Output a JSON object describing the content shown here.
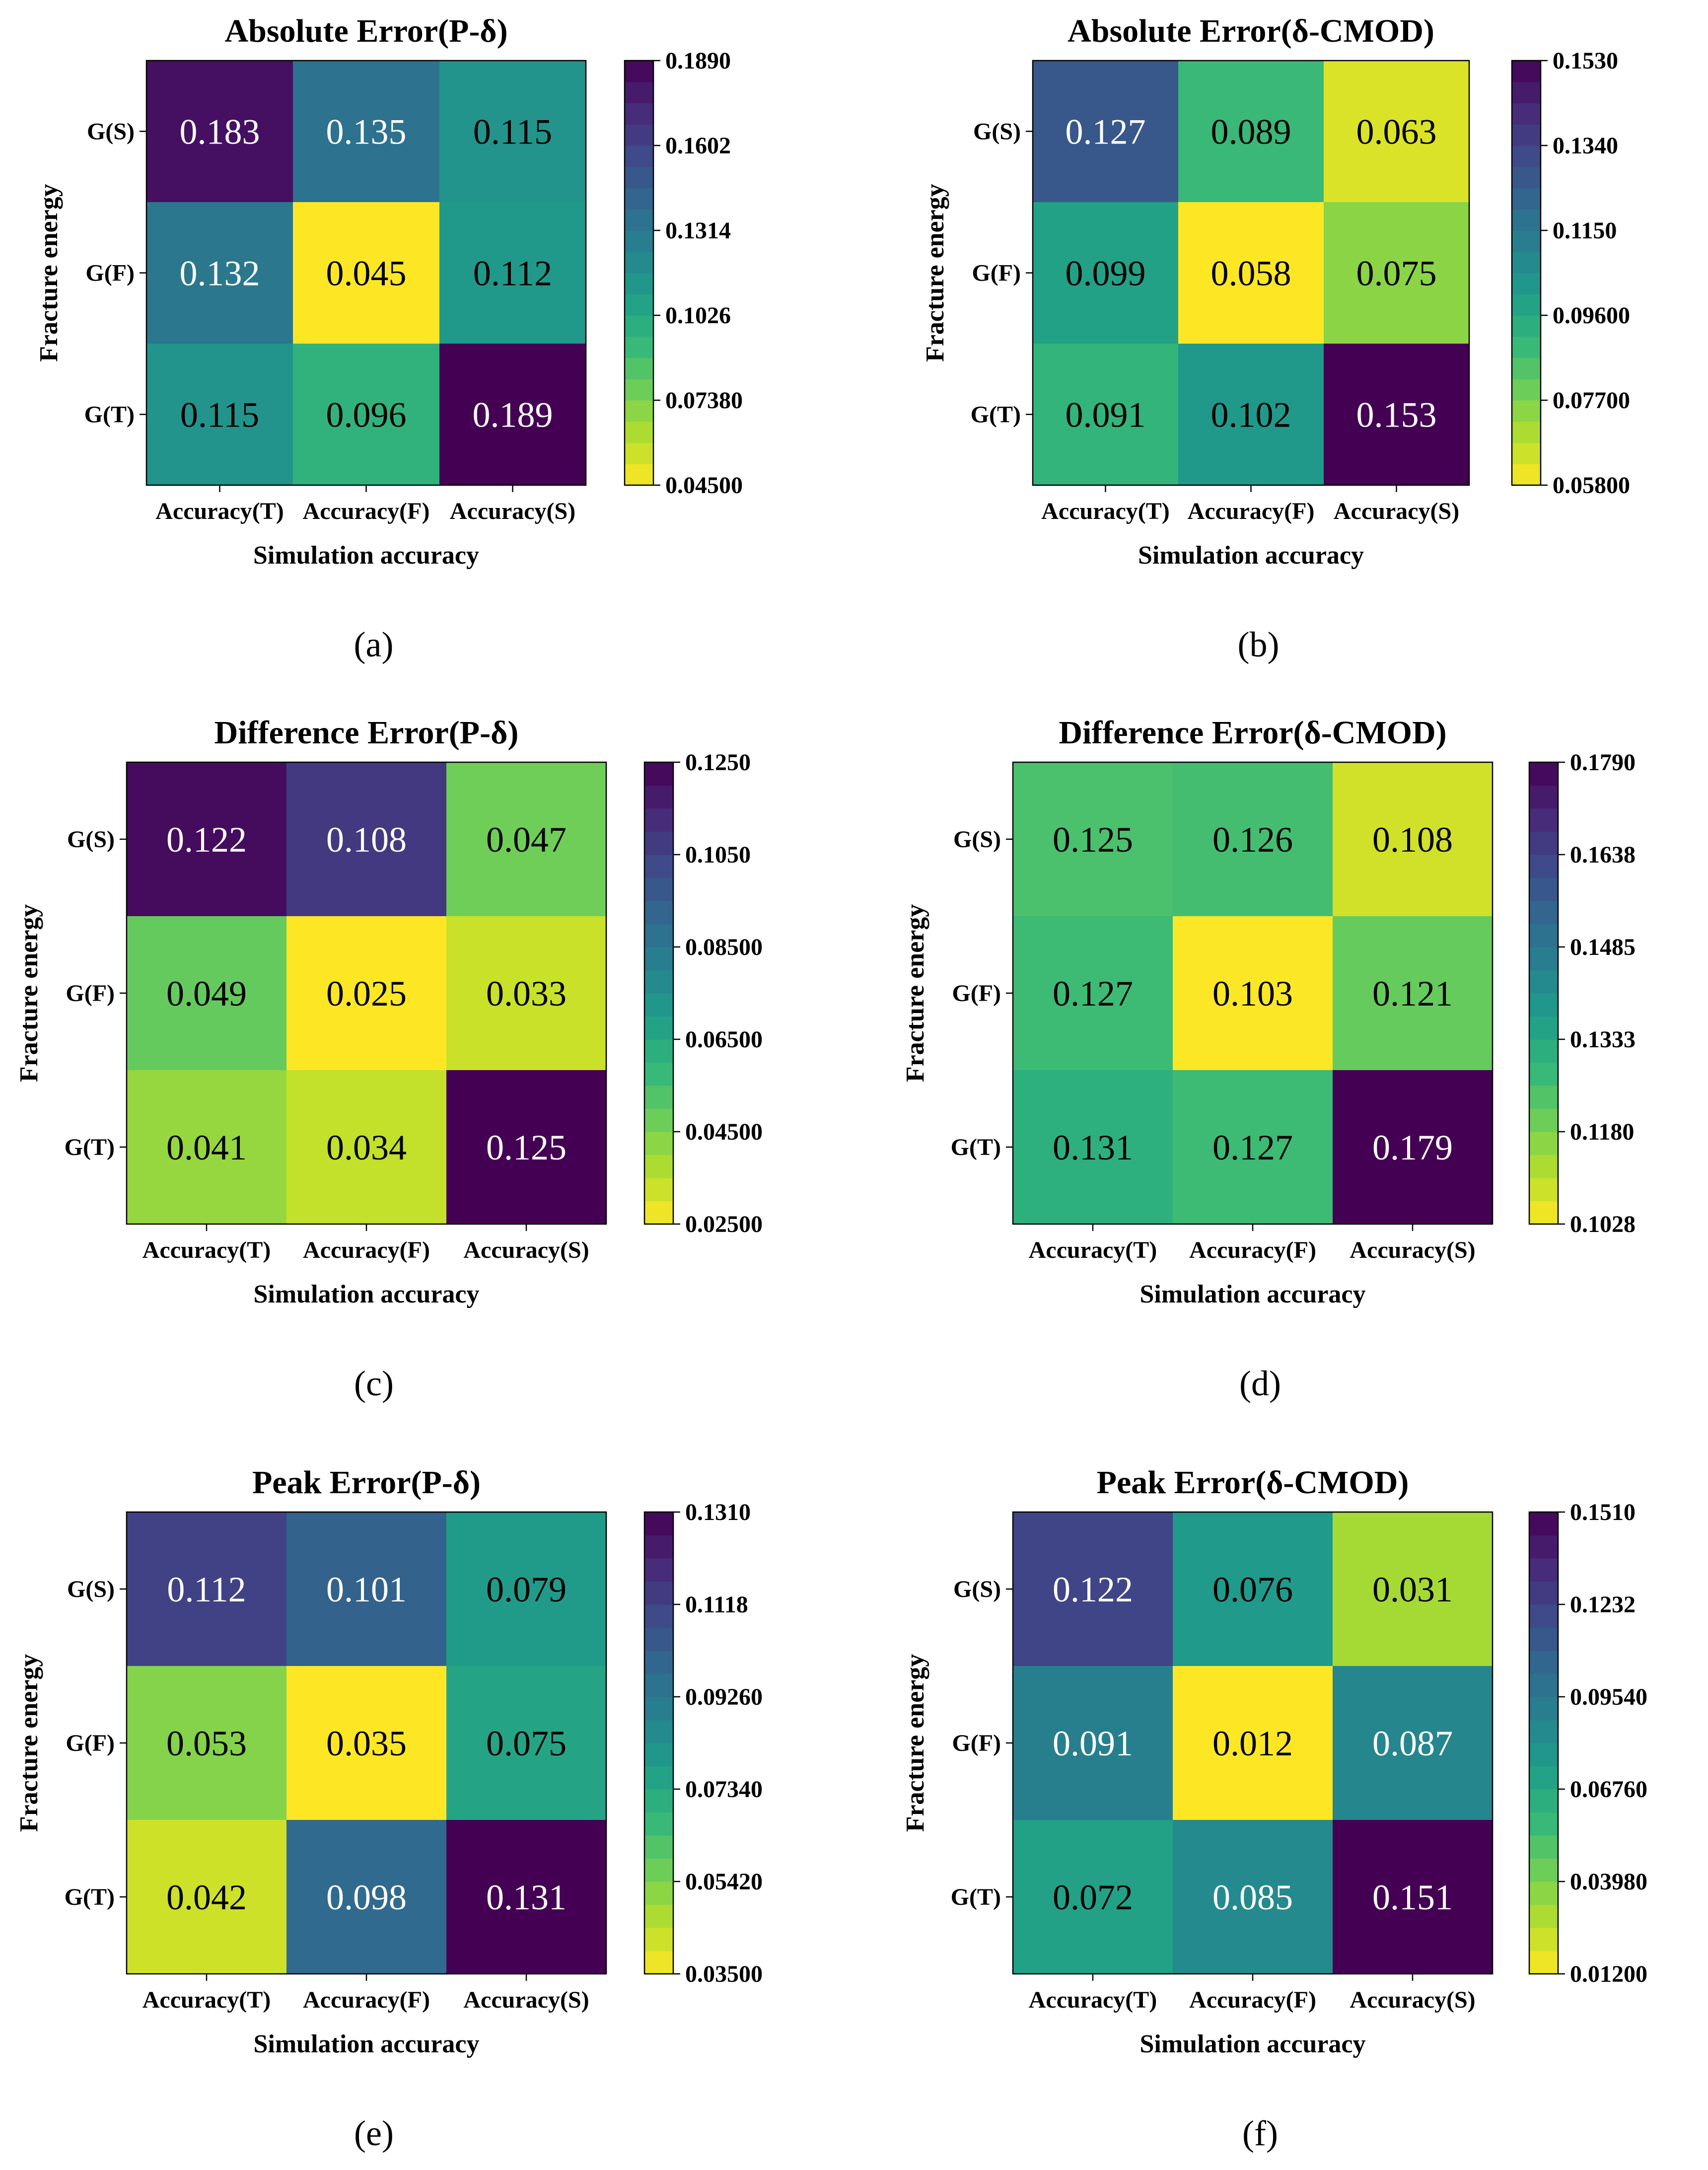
{
  "chart_data": [
    {
      "type": "heatmap",
      "panel": "(a)",
      "title": "Absolute Error(P-δ)",
      "xlabel": "Simulation accuracy",
      "ylabel": "Fracture energy",
      "x_categories": [
        "Accuracy(T)",
        "Accuracy(F)",
        "Accuracy(S)"
      ],
      "y_categories": [
        "G(S)",
        "G(F)",
        "G(T)"
      ],
      "values": [
        [
          0.183,
          0.135,
          0.115
        ],
        [
          0.132,
          0.045,
          0.112
        ],
        [
          0.115,
          0.096,
          0.189
        ]
      ],
      "labels": [
        [
          "0.183",
          "0.135",
          "0.115"
        ],
        [
          "0.132",
          "0.045",
          "0.112"
        ],
        [
          "0.115",
          "0.096",
          "0.189"
        ]
      ],
      "vmin": 0.045,
      "vmax": 0.189,
      "colorbar_ticks": [
        "0.1890",
        "0.1602",
        "0.1314",
        "0.1026",
        "0.07380",
        "0.04500"
      ]
    },
    {
      "type": "heatmap",
      "panel": "(b)",
      "title": "Absolute Error(δ-CMOD)",
      "xlabel": "Simulation accuracy",
      "ylabel": "Fracture energy",
      "x_categories": [
        "Accuracy(T)",
        "Accuracy(F)",
        "Accuracy(S)"
      ],
      "y_categories": [
        "G(S)",
        "G(F)",
        "G(T)"
      ],
      "values": [
        [
          0.127,
          0.089,
          0.063
        ],
        [
          0.099,
          0.058,
          0.075
        ],
        [
          0.091,
          0.102,
          0.153
        ]
      ],
      "labels": [
        [
          "0.127",
          "0.089",
          "0.063"
        ],
        [
          "0.099",
          "0.058",
          "0.075"
        ],
        [
          "0.091",
          "0.102",
          "0.153"
        ]
      ],
      "vmin": 0.058,
      "vmax": 0.153,
      "colorbar_ticks": [
        "0.1530",
        "0.1340",
        "0.1150",
        "0.09600",
        "0.07700",
        "0.05800"
      ]
    },
    {
      "type": "heatmap",
      "panel": "(c)",
      "title": "Difference Error(P-δ)",
      "xlabel": "Simulation accuracy",
      "ylabel": "Fracture energy",
      "x_categories": [
        "Accuracy(T)",
        "Accuracy(F)",
        "Accuracy(S)"
      ],
      "y_categories": [
        "G(S)",
        "G(F)",
        "G(T)"
      ],
      "values": [
        [
          0.122,
          0.108,
          0.047
        ],
        [
          0.049,
          0.025,
          0.033
        ],
        [
          0.041,
          0.034,
          0.125
        ]
      ],
      "labels": [
        [
          "0.122",
          "0.108",
          "0.047"
        ],
        [
          "0.049",
          "0.025",
          "0.033"
        ],
        [
          "0.041",
          "0.034",
          "0.125"
        ]
      ],
      "vmin": 0.025,
      "vmax": 0.125,
      "colorbar_ticks": [
        "0.1250",
        "0.1050",
        "0.08500",
        "0.06500",
        "0.04500",
        "0.02500"
      ]
    },
    {
      "type": "heatmap",
      "panel": "(d)",
      "title": "Difference Error(δ-CMOD)",
      "xlabel": "Simulation accuracy",
      "ylabel": "Fracture energy",
      "x_categories": [
        "Accuracy(T)",
        "Accuracy(F)",
        "Accuracy(S)"
      ],
      "y_categories": [
        "G(S)",
        "G(F)",
        "G(T)"
      ],
      "values": [
        [
          0.125,
          0.126,
          0.108
        ],
        [
          0.127,
          0.103,
          0.121
        ],
        [
          0.131,
          0.127,
          0.179
        ]
      ],
      "labels": [
        [
          "0.125",
          "0.126",
          "0.108"
        ],
        [
          "0.127",
          "0.103",
          "0.121"
        ],
        [
          "0.131",
          "0.127",
          "0.179"
        ]
      ],
      "vmin": 0.1028,
      "vmax": 0.179,
      "colorbar_ticks": [
        "0.1790",
        "0.1638",
        "0.1485",
        "0.1333",
        "0.1180",
        "0.1028"
      ]
    },
    {
      "type": "heatmap",
      "panel": "(e)",
      "title": "Peak Error(P-δ)",
      "xlabel": "Simulation accuracy",
      "ylabel": "Fracture energy",
      "x_categories": [
        "Accuracy(T)",
        "Accuracy(F)",
        "Accuracy(S)"
      ],
      "y_categories": [
        "G(S)",
        "G(F)",
        "G(T)"
      ],
      "values": [
        [
          0.112,
          0.101,
          0.079
        ],
        [
          0.053,
          0.035,
          0.075
        ],
        [
          0.042,
          0.098,
          0.131
        ]
      ],
      "labels": [
        [
          "0.112",
          "0.101",
          "0.079"
        ],
        [
          "0.053",
          "0.035",
          "0.075"
        ],
        [
          "0.042",
          "0.098",
          "0.131"
        ]
      ],
      "vmin": 0.035,
      "vmax": 0.131,
      "colorbar_ticks": [
        "0.1310",
        "0.1118",
        "0.09260",
        "0.07340",
        "0.05420",
        "0.03500"
      ]
    },
    {
      "type": "heatmap",
      "panel": "(f)",
      "title": "Peak Error(δ-CMOD)",
      "xlabel": "Simulation accuracy",
      "ylabel": "Fracture energy",
      "x_categories": [
        "Accuracy(T)",
        "Accuracy(F)",
        "Accuracy(S)"
      ],
      "y_categories": [
        "G(S)",
        "G(F)",
        "G(T)"
      ],
      "values": [
        [
          0.122,
          0.076,
          0.031
        ],
        [
          0.091,
          0.012,
          0.087
        ],
        [
          0.072,
          0.085,
          0.151
        ]
      ],
      "labels": [
        [
          "0.122",
          "0.076",
          "0.031"
        ],
        [
          "0.091",
          "0.012",
          "0.087"
        ],
        [
          "0.072",
          "0.085",
          "0.151"
        ]
      ],
      "vmin": 0.012,
      "vmax": 0.151,
      "colorbar_ticks": [
        "0.1510",
        "0.1232",
        "0.09540",
        "0.06760",
        "0.03980",
        "0.01200"
      ]
    }
  ],
  "colormap": {
    "name": "viridis",
    "stops": [
      "#fde725",
      "#b5de2b",
      "#6ece58",
      "#35b779",
      "#1f9e89",
      "#26828e",
      "#31688e",
      "#3e4989",
      "#482878",
      "#440154"
    ]
  }
}
